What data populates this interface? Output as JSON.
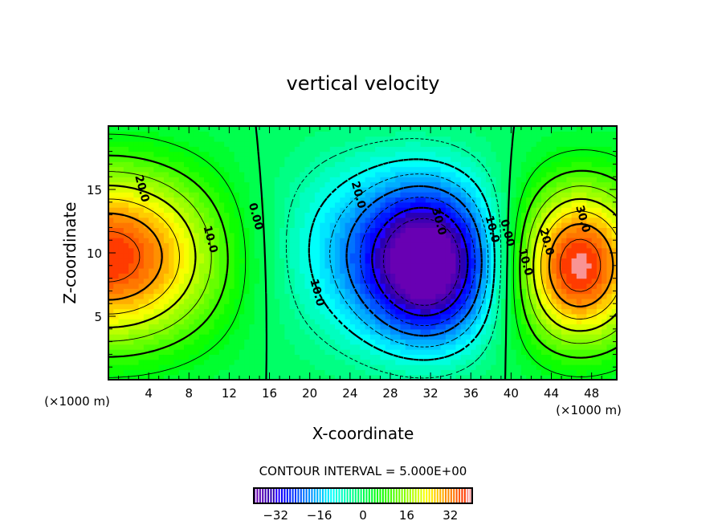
{
  "chart_data": {
    "type": "heatmap",
    "subtype": "filled-contour",
    "title": "vertical velocity",
    "xlabel": "X-coordinate",
    "ylabel": "Z-coordinate",
    "x_unit": "(×1000 m)",
    "y_unit": "(×1000 m)",
    "xlim": [
      0,
      50.5
    ],
    "ylim": [
      0,
      20
    ],
    "xticks": [
      4,
      8,
      12,
      16,
      20,
      24,
      28,
      32,
      36,
      40,
      44,
      48
    ],
    "xtick_labels": [
      "4",
      "8",
      "12",
      "16",
      "20",
      "24",
      "28",
      "32",
      "36",
      "40",
      "44",
      "48"
    ],
    "yticks": [
      5,
      10,
      15
    ],
    "ytick_labels": [
      "5",
      "10",
      "15"
    ],
    "contour_interval_label": "CONTOUR INTERVAL = 5.000E+00",
    "contour_interval": 5,
    "colorbar": {
      "range": [
        -40,
        40
      ],
      "ticks": [
        -32,
        -16,
        0,
        16,
        32
      ],
      "tick_labels": [
        "−32",
        "−16",
        "0",
        "16",
        "32"
      ]
    },
    "features": [
      {
        "kind": "updraft",
        "x": 0,
        "z": 9.5,
        "peak": 38
      },
      {
        "kind": "downdraft",
        "x": 32,
        "z": 8.5,
        "peak": -40
      },
      {
        "kind": "updraft",
        "x": 46.5,
        "z": 8.5,
        "peak": 37
      }
    ],
    "contour_labels": [
      {
        "text": "20.0",
        "x": 3,
        "z": 15
      },
      {
        "text": "10.0",
        "x": 9.8,
        "z": 11
      },
      {
        "text": "0.00",
        "x": 14.3,
        "z": 12.8
      },
      {
        "text": "20.0",
        "x": 24.5,
        "z": 14.5
      },
      {
        "text": "30.0",
        "x": 32.5,
        "z": 12.4
      },
      {
        "text": "10.0",
        "x": 20.4,
        "z": 6.8
      },
      {
        "text": "10.0",
        "x": 37.8,
        "z": 11.8
      },
      {
        "text": "0.00",
        "x": 39.3,
        "z": 11.5
      },
      {
        "text": "10.0",
        "x": 41.1,
        "z": 9.2
      },
      {
        "text": "20.0",
        "x": 43.2,
        "z": 10.8
      },
      {
        "text": "30.0",
        "x": 46.8,
        "z": 12.6
      }
    ]
  }
}
